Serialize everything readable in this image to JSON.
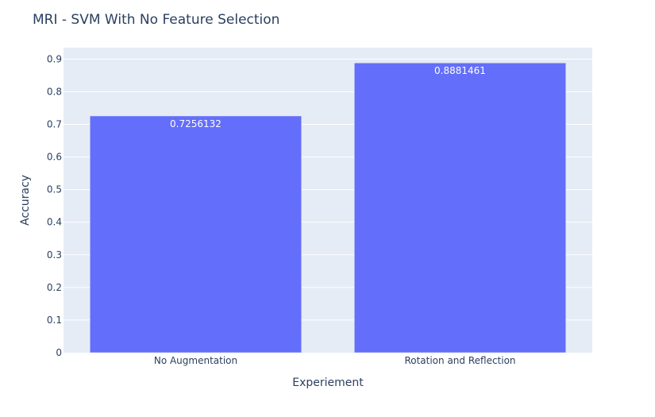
{
  "chart_data": {
    "type": "bar",
    "title": "MRI - SVM With No Feature Selection",
    "xlabel": "Experiement",
    "ylabel": "Accuracy",
    "categories": [
      "No Augmentation",
      "Rotation and Reflection"
    ],
    "values": [
      0.7256132,
      0.8881461
    ],
    "value_labels": [
      "0.7256132",
      "0.8881461"
    ],
    "ylim": [
      0,
      0.935
    ],
    "yticks": [
      0,
      0.1,
      0.2,
      0.3,
      0.4,
      0.5,
      0.6,
      0.7,
      0.8,
      0.9
    ],
    "ytick_labels": [
      "0",
      "0.1",
      "0.2",
      "0.3",
      "0.4",
      "0.5",
      "0.6",
      "0.7",
      "0.8",
      "0.9"
    ],
    "grid": true,
    "legend": "none",
    "colors": {
      "bar": "#636efa",
      "plot_bg": "#e5ecf6",
      "grid": "#ffffff",
      "text": "#2a3f5f"
    }
  }
}
